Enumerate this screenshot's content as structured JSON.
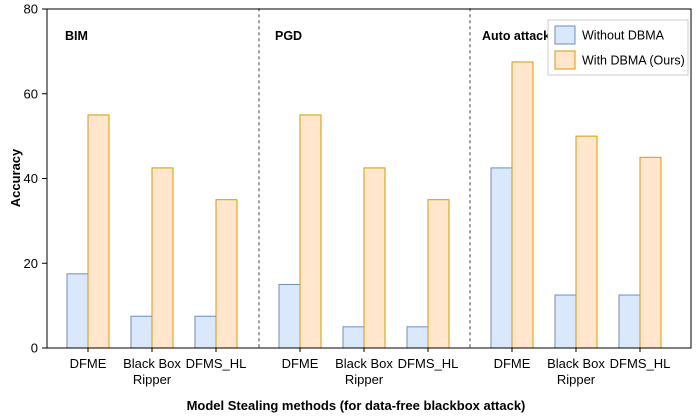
{
  "chart_data": {
    "type": "bar",
    "xlabel": "Model Stealing methods (for data-free blackbox attack)",
    "ylabel": "Accuracy",
    "ylim": [
      0,
      80
    ],
    "yticks": [
      0,
      20,
      40,
      60,
      80
    ],
    "grid": false,
    "legend_position": "top-right",
    "groups": [
      {
        "label": "BIM",
        "categories": [
          "DFME",
          "Black Box\nRipper",
          "DFMS_HL"
        ]
      },
      {
        "label": "PGD",
        "categories": [
          "DFME",
          "Black Box\nRipper",
          "DFMS_HL"
        ]
      },
      {
        "label": "Auto attack",
        "categories": [
          "DFME",
          "Black Box\nRipper",
          "DFMS_HL"
        ]
      }
    ],
    "categories": [
      "DFME",
      "Black Box\nRipper",
      "DFMS_HL",
      "DFME",
      "Black Box\nRipper",
      "DFMS_HL",
      "DFME",
      "Black Box\nRipper",
      "DFMS_HL"
    ],
    "series": [
      {
        "name": "Without DBMA",
        "fill": "#dae8fc",
        "stroke": "#6c8ebf",
        "values": [
          17.5,
          7.5,
          7.5,
          15,
          5,
          5,
          42.5,
          12.5,
          12.5
        ]
      },
      {
        "name": "With DBMA (Ours)",
        "fill": "#ffe6cc",
        "stroke": "#d79b00",
        "values": [
          55,
          42.5,
          35,
          55,
          42.5,
          35,
          67.5,
          50,
          45
        ]
      }
    ]
  }
}
